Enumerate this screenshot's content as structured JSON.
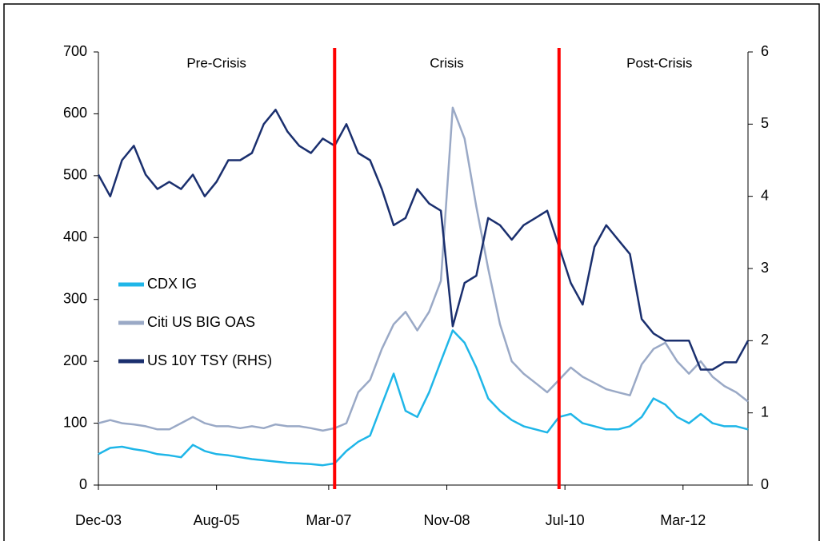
{
  "chart_data": {
    "type": "line",
    "x": [
      "2003-12",
      "2004-02",
      "2004-04",
      "2004-06",
      "2004-08",
      "2004-10",
      "2004-12",
      "2005-02",
      "2005-04",
      "2005-06",
      "2005-08",
      "2005-10",
      "2005-12",
      "2006-02",
      "2006-04",
      "2006-06",
      "2006-08",
      "2006-10",
      "2006-12",
      "2007-02",
      "2007-04",
      "2007-06",
      "2007-08",
      "2007-10",
      "2007-12",
      "2008-02",
      "2008-04",
      "2008-06",
      "2008-08",
      "2008-10",
      "2008-12",
      "2009-02",
      "2009-04",
      "2009-06",
      "2009-08",
      "2009-10",
      "2009-12",
      "2010-02",
      "2010-04",
      "2010-06",
      "2010-08",
      "2010-10",
      "2010-12",
      "2011-02",
      "2011-04",
      "2011-06",
      "2011-08",
      "2011-10",
      "2011-12",
      "2012-02",
      "2012-04",
      "2012-06",
      "2012-08",
      "2012-10",
      "2012-12",
      "2013-02"
    ],
    "series": [
      {
        "name": "CDX IG",
        "color": "#1fb6e8",
        "values": [
          50,
          60,
          62,
          58,
          55,
          50,
          48,
          45,
          65,
          55,
          50,
          48,
          45,
          42,
          40,
          38,
          36,
          35,
          34,
          32,
          35,
          55,
          70,
          80,
          130,
          180,
          120,
          110,
          150,
          200,
          250,
          230,
          190,
          140,
          120,
          105,
          95,
          90,
          85,
          110,
          115,
          100,
          95,
          90,
          90,
          95,
          110,
          140,
          130,
          110,
          100,
          115,
          100,
          95,
          95,
          90
        ]
      },
      {
        "name": "Citi US BIG OAS",
        "color": "#9aa9c6",
        "values": [
          100,
          105,
          100,
          98,
          95,
          90,
          90,
          100,
          110,
          100,
          95,
          95,
          92,
          95,
          92,
          98,
          95,
          95,
          92,
          88,
          92,
          100,
          150,
          170,
          220,
          260,
          280,
          250,
          280,
          330,
          610,
          560,
          450,
          350,
          260,
          200,
          180,
          165,
          150,
          170,
          190,
          175,
          165,
          155,
          150,
          145,
          195,
          220,
          230,
          200,
          180,
          200,
          175,
          160,
          150,
          135
        ]
      },
      {
        "name": "US 10Y TSY (RHS)",
        "color": "#1a2f6e",
        "axis": "y2",
        "values": [
          4.3,
          4.0,
          4.5,
          4.7,
          4.3,
          4.1,
          4.2,
          4.1,
          4.3,
          4.0,
          4.2,
          4.5,
          4.5,
          4.6,
          5.0,
          5.2,
          4.9,
          4.7,
          4.6,
          4.8,
          4.7,
          5.0,
          4.6,
          4.5,
          4.1,
          3.6,
          3.7,
          4.1,
          3.9,
          3.8,
          2.2,
          2.8,
          2.9,
          3.7,
          3.6,
          3.4,
          3.6,
          3.7,
          3.8,
          3.3,
          2.8,
          2.5,
          3.3,
          3.6,
          3.4,
          3.2,
          2.3,
          2.1,
          2.0,
          2.0,
          2.0,
          1.6,
          1.6,
          1.7,
          1.7,
          2.0
        ]
      }
    ],
    "xlim": [
      "2003-12",
      "2013-02"
    ],
    "xticks": [
      {
        "value": "2003-12",
        "label": "Dec-03"
      },
      {
        "value": "2005-08",
        "label": "Aug-05"
      },
      {
        "value": "2007-03",
        "label": "Mar-07"
      },
      {
        "value": "2008-11",
        "label": "Nov-08"
      },
      {
        "value": "2010-07",
        "label": "Jul-10"
      },
      {
        "value": "2012-03",
        "label": "Mar-12"
      }
    ],
    "ylim": [
      0,
      700
    ],
    "yticks": [
      0,
      100,
      200,
      300,
      400,
      500,
      600,
      700
    ],
    "y2lim": [
      0,
      6
    ],
    "y2ticks": [
      0,
      1,
      2,
      3,
      4,
      5,
      6
    ],
    "dividers": {
      "color": "#ff0000",
      "x": [
        "2007-04",
        "2010-06"
      ]
    },
    "regions": [
      {
        "label": "Pre-Crisis",
        "x": "2005-08"
      },
      {
        "label": "Crisis",
        "x": "2008-11"
      },
      {
        "label": "Post-Crisis",
        "x": "2011-11"
      }
    ],
    "legend": "left"
  }
}
